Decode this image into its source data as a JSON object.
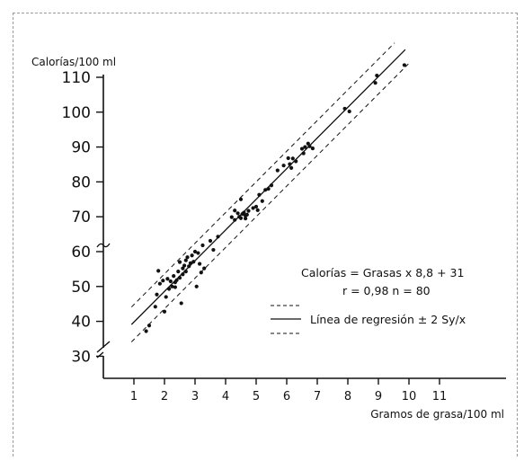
{
  "chart_data": {
    "type": "scatter",
    "ylabel": "Calorías/100 ml",
    "xlabel": "Gramos de grasa/100 ml",
    "xlim": [
      0,
      12
    ],
    "ylim": [
      28,
      112
    ],
    "x_ticks": [
      "1",
      "2",
      "3",
      "4",
      "5",
      "6",
      "7",
      "8",
      "9",
      "10",
      "11"
    ],
    "y_ticks": [
      "110",
      "100",
      "90",
      "80",
      "70",
      "60",
      "50",
      "40",
      "30"
    ],
    "y_axis_break": true,
    "grid": false,
    "equation": "Calorías = Grasas x 8,8 + 31",
    "stats": "r = 0,98   n = 80",
    "legend_regression": "Línea de regresión ± 2 Sy/x",
    "regression": {
      "slope": 8.8,
      "intercept": 31
    },
    "band_offset": 5,
    "line_x_range": [
      0.92,
      9.88
    ],
    "points": [
      [
        1.4,
        37.2
      ],
      [
        1.5,
        38.8
      ],
      [
        1.7,
        44.2
      ],
      [
        1.75,
        47.7
      ],
      [
        1.8,
        54.5
      ],
      [
        1.85,
        50.8
      ],
      [
        1.95,
        51.7
      ],
      [
        2.0,
        42.8
      ],
      [
        2.05,
        47.0
      ],
      [
        2.1,
        52.2
      ],
      [
        2.15,
        49.3
      ],
      [
        2.2,
        51.5
      ],
      [
        2.25,
        50.0
      ],
      [
        2.3,
        53.0
      ],
      [
        2.35,
        49.8
      ],
      [
        2.4,
        51.8
      ],
      [
        2.45,
        54.3
      ],
      [
        2.5,
        52.5
      ],
      [
        2.5,
        57.0
      ],
      [
        2.55,
        45.2
      ],
      [
        2.6,
        55.2
      ],
      [
        2.6,
        53.5
      ],
      [
        2.65,
        56.0
      ],
      [
        2.7,
        57.5
      ],
      [
        2.7,
        54.3
      ],
      [
        2.75,
        58.4
      ],
      [
        2.8,
        55.8
      ],
      [
        2.85,
        56.7
      ],
      [
        2.9,
        58.9
      ],
      [
        2.95,
        57.1
      ],
      [
        3.0,
        60.0
      ],
      [
        3.05,
        50.0
      ],
      [
        3.1,
        59.6
      ],
      [
        3.15,
        56.5
      ],
      [
        3.2,
        54.0
      ],
      [
        3.25,
        61.8
      ],
      [
        3.3,
        55.2
      ],
      [
        3.5,
        63.1
      ],
      [
        3.6,
        60.5
      ],
      [
        3.75,
        64.3
      ],
      [
        4.2,
        69.9
      ],
      [
        4.3,
        71.8
      ],
      [
        4.3,
        69.1
      ],
      [
        4.4,
        71.0
      ],
      [
        4.45,
        70.0
      ],
      [
        4.5,
        75.0
      ],
      [
        4.5,
        69.6
      ],
      [
        4.55,
        70.8
      ],
      [
        4.6,
        71.2
      ],
      [
        4.65,
        69.5
      ],
      [
        4.7,
        70.6
      ],
      [
        4.75,
        71.7
      ],
      [
        4.9,
        72.5
      ],
      [
        5.0,
        72.9
      ],
      [
        5.05,
        71.9
      ],
      [
        5.1,
        76.3
      ],
      [
        5.2,
        74.5
      ],
      [
        5.3,
        77.7
      ],
      [
        5.4,
        78.0
      ],
      [
        5.5,
        79.0
      ],
      [
        5.7,
        83.3
      ],
      [
        5.9,
        84.7
      ],
      [
        6.05,
        86.8
      ],
      [
        6.1,
        85.1
      ],
      [
        6.15,
        84.0
      ],
      [
        6.2,
        86.7
      ],
      [
        6.3,
        85.9
      ],
      [
        6.5,
        89.5
      ],
      [
        6.55,
        88.2
      ],
      [
        6.6,
        90.0
      ],
      [
        6.7,
        91.0
      ],
      [
        6.75,
        90.2
      ],
      [
        6.85,
        89.6
      ],
      [
        7.9,
        101.0
      ],
      [
        8.05,
        100.2
      ],
      [
        8.9,
        108.4
      ],
      [
        8.95,
        110.5
      ],
      [
        9.85,
        113.5
      ],
      [
        4.65,
        70.3
      ],
      [
        2.35,
        51.2
      ]
    ]
  }
}
